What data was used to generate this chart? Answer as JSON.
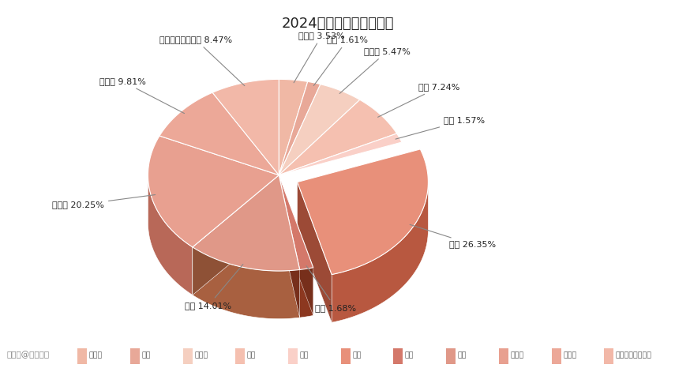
{
  "title": "2024各专业大类人数占比",
  "labels": [
    "经济学",
    "法学",
    "教育学",
    "文学",
    "理学",
    "工学",
    "农学",
    "医学",
    "管理学",
    "艺术学",
    "本科层次职业学校"
  ],
  "values": [
    3.53,
    1.61,
    5.47,
    7.24,
    1.57,
    26.35,
    1.68,
    14.01,
    20.25,
    9.81,
    8.47
  ],
  "top_colors": [
    "#f0b8a5",
    "#e8a898",
    "#f5cfc0",
    "#f5c0b0",
    "#fad0c8",
    "#e8907a",
    "#d4786a",
    "#e09888",
    "#e8a090",
    "#eca898",
    "#f2b8a8"
  ],
  "side_colors": [
    "#c07860",
    "#b06858",
    "#c89880",
    "#c89070",
    "#d0a088",
    "#b85840",
    "#8c3820",
    "#a86040",
    "#b86858",
    "#c07868",
    "#c88870"
  ],
  "explode_index": 5,
  "explode_amount": 0.13,
  "watermark": "搜狐号@阿库升本",
  "background_color": "#ffffff",
  "legend_colors": [
    "#f0b8a5",
    "#e8a898",
    "#f5cfc0",
    "#f5c0b0",
    "#fad0c8",
    "#e8907a",
    "#d4786a",
    "#e09888",
    "#e8a090",
    "#eca898",
    "#f2b8a8"
  ]
}
